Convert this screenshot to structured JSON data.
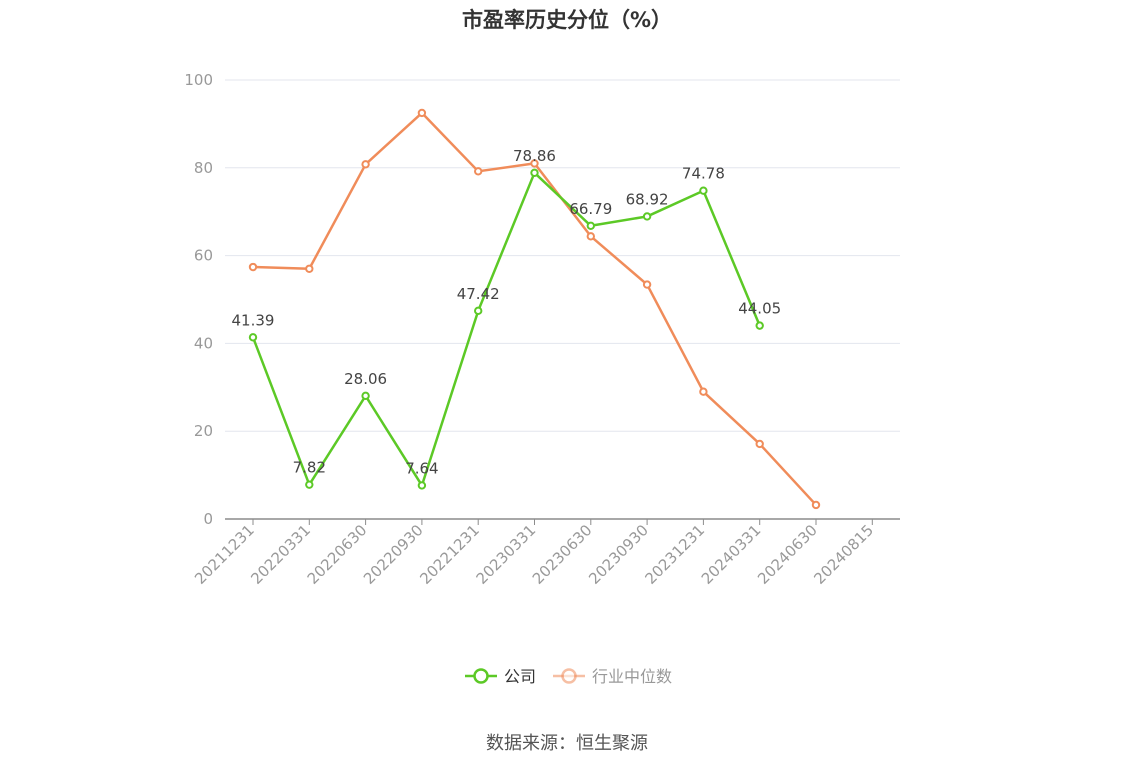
{
  "chart_data": {
    "type": "line",
    "title": "市盈率历史分位（%）",
    "source": "数据来源：恒生聚源",
    "x": [
      "20211231",
      "20220331",
      "20220630",
      "20220930",
      "20221231",
      "20230331",
      "20230630",
      "20230930",
      "20231231",
      "20240331",
      "20240630",
      "20240815"
    ],
    "ylim": [
      0,
      100
    ],
    "yticks": [
      0,
      20,
      40,
      60,
      80,
      100
    ],
    "grid": true,
    "legend_position": "bottom",
    "series": [
      {
        "name": "公司",
        "color": "#5cc926",
        "values": [
          41.39,
          7.82,
          28.06,
          7.64,
          47.42,
          78.86,
          66.79,
          68.92,
          74.78,
          44.05,
          null,
          null
        ],
        "labels": [
          "41.39",
          "7.82",
          "28.06",
          "7.64",
          "47.42",
          "78.86",
          "66.79",
          "68.92",
          "74.78",
          "44.05",
          null,
          null
        ]
      },
      {
        "name": "行业中位数",
        "color": "#f08c5a",
        "values": [
          57.4,
          57.0,
          80.8,
          92.5,
          79.2,
          81.0,
          64.4,
          53.4,
          29.0,
          17.1,
          3.2,
          null
        ]
      }
    ]
  }
}
